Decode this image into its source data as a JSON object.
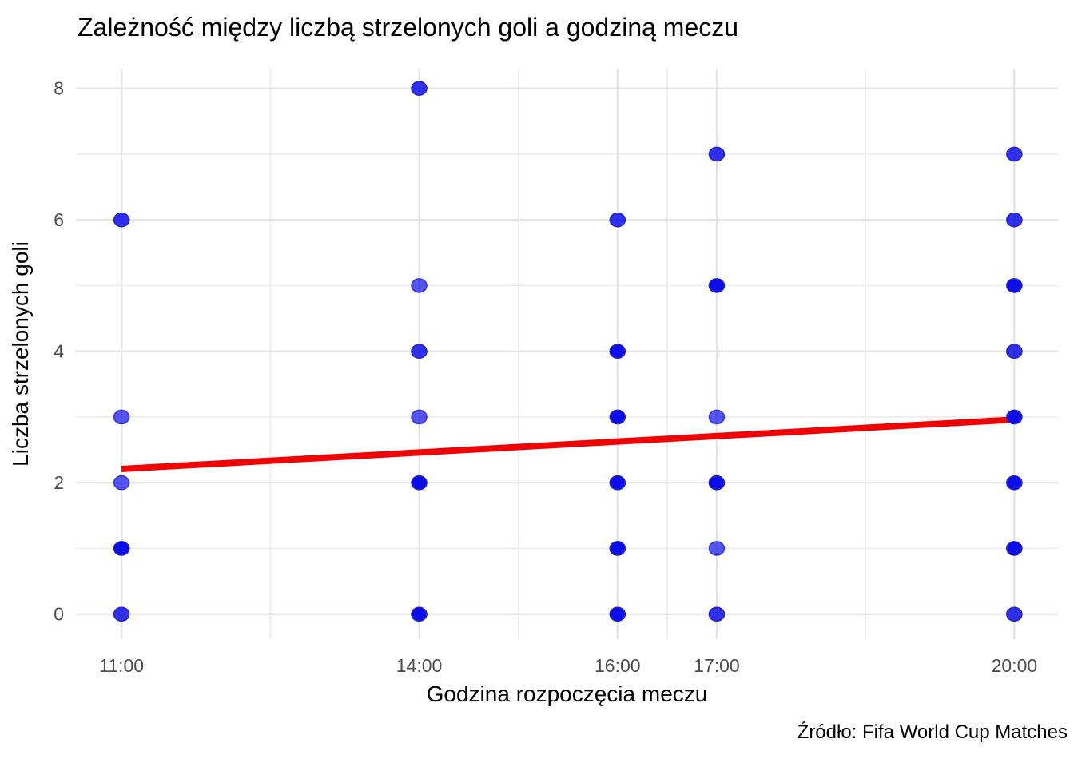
{
  "chart_data": {
    "type": "scatter",
    "title": "Zależność między liczbą strzelonych goli a godziną meczu",
    "xlabel": "Godzina rozpoczęcia meczu",
    "ylabel": "Liczba strzelonych goli",
    "caption": "Źródło: Fifa World Cup Matches",
    "x_ticks": [
      {
        "hour": 11,
        "label": "11:00"
      },
      {
        "hour": 14,
        "label": "14:00"
      },
      {
        "hour": 16,
        "label": "16:00"
      },
      {
        "hour": 17,
        "label": "17:00"
      },
      {
        "hour": 20,
        "label": "20:00"
      }
    ],
    "x_minor_hours": [
      12.5,
      15,
      16.5,
      18.5
    ],
    "y_ticks": [
      0,
      2,
      4,
      6,
      8
    ],
    "y_minor": [
      1,
      3,
      5,
      7
    ],
    "xlim": [
      10.54,
      20.44
    ],
    "ylim": [
      -0.38,
      8.3
    ],
    "grid": true,
    "legend_position": "none",
    "colors": {
      "point_fill": "#0d0de8",
      "point_stroke": "#2222c0",
      "trend_line": "#ee0404",
      "grid_major": "#e3e3e3",
      "grid_minor": "#ececec",
      "tick_label": "#4d4d4d"
    },
    "overlap_opacity": {
      "light": 0.7,
      "medium": 0.85,
      "dark": 1.0
    },
    "points": [
      {
        "x": 11,
        "time": "11:00",
        "goals": 0,
        "overlap": "medium"
      },
      {
        "x": 11,
        "time": "11:00",
        "goals": 1,
        "overlap": "dark"
      },
      {
        "x": 11,
        "time": "11:00",
        "goals": 2,
        "overlap": "light"
      },
      {
        "x": 11,
        "time": "11:00",
        "goals": 3,
        "overlap": "light"
      },
      {
        "x": 11,
        "time": "11:00",
        "goals": 6,
        "overlap": "medium"
      },
      {
        "x": 14,
        "time": "14:00",
        "goals": 0,
        "overlap": "dark"
      },
      {
        "x": 14,
        "time": "14:00",
        "goals": 2,
        "overlap": "dark"
      },
      {
        "x": 14,
        "time": "14:00",
        "goals": 3,
        "overlap": "light"
      },
      {
        "x": 14,
        "time": "14:00",
        "goals": 4,
        "overlap": "medium"
      },
      {
        "x": 14,
        "time": "14:00",
        "goals": 5,
        "overlap": "light"
      },
      {
        "x": 14,
        "time": "14:00",
        "goals": 8,
        "overlap": "medium"
      },
      {
        "x": 16,
        "time": "16:00",
        "goals": 0,
        "overlap": "dark"
      },
      {
        "x": 16,
        "time": "16:00",
        "goals": 1,
        "overlap": "dark"
      },
      {
        "x": 16,
        "time": "16:00",
        "goals": 2,
        "overlap": "dark"
      },
      {
        "x": 16,
        "time": "16:00",
        "goals": 3,
        "overlap": "dark"
      },
      {
        "x": 16,
        "time": "16:00",
        "goals": 4,
        "overlap": "dark"
      },
      {
        "x": 16,
        "time": "16:00",
        "goals": 6,
        "overlap": "medium"
      },
      {
        "x": 17,
        "time": "17:00",
        "goals": 0,
        "overlap": "medium"
      },
      {
        "x": 17,
        "time": "17:00",
        "goals": 1,
        "overlap": "light"
      },
      {
        "x": 17,
        "time": "17:00",
        "goals": 2,
        "overlap": "dark"
      },
      {
        "x": 17,
        "time": "17:00",
        "goals": 3,
        "overlap": "light"
      },
      {
        "x": 17,
        "time": "17:00",
        "goals": 5,
        "overlap": "dark"
      },
      {
        "x": 17,
        "time": "17:00",
        "goals": 7,
        "overlap": "medium"
      },
      {
        "x": 20,
        "time": "20:00",
        "goals": 0,
        "overlap": "medium"
      },
      {
        "x": 20,
        "time": "20:00",
        "goals": 1,
        "overlap": "dark"
      },
      {
        "x": 20,
        "time": "20:00",
        "goals": 2,
        "overlap": "dark"
      },
      {
        "x": 20,
        "time": "20:00",
        "goals": 3,
        "overlap": "dark"
      },
      {
        "x": 20,
        "time": "20:00",
        "goals": 4,
        "overlap": "medium"
      },
      {
        "x": 20,
        "time": "20:00",
        "goals": 5,
        "overlap": "dark"
      },
      {
        "x": 20,
        "time": "20:00",
        "goals": 6,
        "overlap": "medium"
      },
      {
        "x": 20,
        "time": "20:00",
        "goals": 7,
        "overlap": "medium"
      }
    ],
    "trend_line": {
      "color": "#ee0404",
      "width": 8,
      "x_start": 11,
      "y_start": 2.21,
      "x_end": 20,
      "y_end": 2.96
    }
  }
}
